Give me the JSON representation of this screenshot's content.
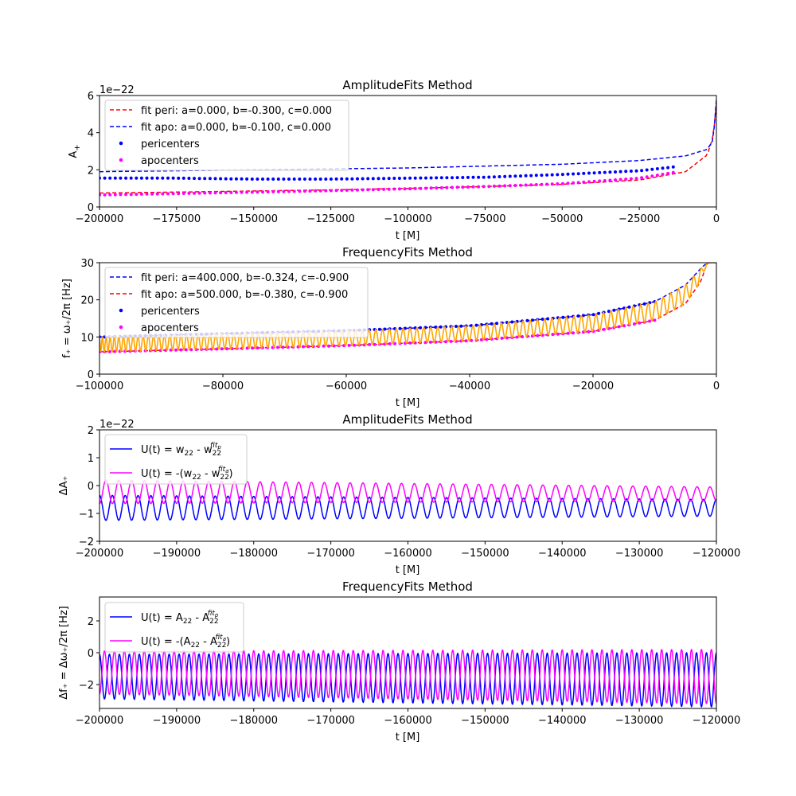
{
  "chart_data": [
    {
      "type": "line",
      "title": "AmplitudeFits Method",
      "xlabel": "t [M]",
      "ylabel": "A",
      "ylabel_sub": "+",
      "offset_text": "1e−22",
      "xlim": [
        -200000,
        0
      ],
      "ylim": [
        0,
        6
      ],
      "xticks": [
        -200000,
        -175000,
        -150000,
        -125000,
        -100000,
        -75000,
        -50000,
        -25000,
        0
      ],
      "xtick_labels": [
        "−200000",
        "−175000",
        "−150000",
        "−125000",
        "−100000",
        "−75000",
        "−50000",
        "−25000",
        "0"
      ],
      "yticks": [
        0,
        2,
        4,
        6
      ],
      "ytick_labels": [
        "0",
        "2",
        "4",
        "6"
      ],
      "legend_position": "upper-left",
      "series": [
        {
          "name": "fit peri: a=0.000, b=-0.300, c=0.000",
          "style": "dashed",
          "color": "#ff0000",
          "x": [
            -200000,
            -175000,
            -150000,
            -125000,
            -100000,
            -75000,
            -50000,
            -25000,
            -10000,
            -3000,
            -1000,
            0
          ],
          "y": [
            0.75,
            0.8,
            0.86,
            0.92,
            1.0,
            1.1,
            1.22,
            1.45,
            1.9,
            2.8,
            3.8,
            5.6
          ]
        },
        {
          "name": "fit apo: a=0.000, b=-0.100, c=0.000",
          "style": "dashed",
          "color": "#0000ff",
          "x": [
            -200000,
            -175000,
            -150000,
            -125000,
            -100000,
            -75000,
            -50000,
            -25000,
            -10000,
            -3000,
            -1000,
            0
          ],
          "y": [
            1.9,
            1.95,
            2.0,
            2.05,
            2.1,
            2.2,
            2.3,
            2.5,
            2.75,
            3.1,
            3.6,
            5.8
          ]
        },
        {
          "name": "pericenters",
          "style": "points",
          "color": "#0000ff",
          "x": [
            -200000,
            -175000,
            -150000,
            -125000,
            -100000,
            -75000,
            -50000,
            -25000,
            -14000
          ],
          "y": [
            1.55,
            1.55,
            1.5,
            1.5,
            1.55,
            1.6,
            1.75,
            1.95,
            2.15
          ]
        },
        {
          "name": "apocenters",
          "style": "points",
          "color": "#ff00ff",
          "x": [
            -200000,
            -175000,
            -150000,
            -125000,
            -100000,
            -75000,
            -50000,
            -25000,
            -14000
          ],
          "y": [
            0.65,
            0.72,
            0.8,
            0.88,
            0.98,
            1.1,
            1.25,
            1.55,
            1.85
          ]
        }
      ]
    },
    {
      "type": "line",
      "title": "FrequencyFits Method",
      "xlabel": "t [M]",
      "ylabel": "f₊ = ω₊/2π [Hz]",
      "xlim": [
        -100000,
        0
      ],
      "ylim": [
        0,
        30
      ],
      "xticks": [
        -100000,
        -80000,
        -60000,
        -40000,
        -20000,
        0
      ],
      "xtick_labels": [
        "−100000",
        "−80000",
        "−60000",
        "−40000",
        "−20000",
        "0"
      ],
      "yticks": [
        0,
        10,
        20,
        30
      ],
      "ytick_labels": [
        "0",
        "10",
        "20",
        "30"
      ],
      "legend_position": "upper-left",
      "series": [
        {
          "name": "fit peri: a=400.000, b=-0.324, c=-0.900",
          "style": "dashed",
          "color": "#0000ff",
          "x": [
            -100000,
            -80000,
            -60000,
            -40000,
            -20000,
            -10000,
            -5000,
            -2500,
            -1500
          ],
          "y": [
            10.0,
            10.9,
            11.7,
            13.0,
            16.0,
            19.5,
            24.0,
            28.5,
            30
          ]
        },
        {
          "name": "fit apo: a=500.000, b=-0.380, c=-0.900",
          "style": "dashed",
          "color": "#ff0000",
          "x": [
            -100000,
            -80000,
            -60000,
            -40000,
            -20000,
            -10000,
            -5000,
            -2500,
            -1500
          ],
          "y": [
            6.0,
            6.8,
            7.7,
            9.0,
            11.5,
            14.5,
            19.0,
            25.0,
            30
          ]
        },
        {
          "name": "pericenters",
          "style": "points",
          "color": "#0000ff",
          "x": [
            -100000,
            -80000,
            -60000,
            -40000,
            -20000,
            -10000
          ],
          "y": [
            10.0,
            10.9,
            11.7,
            13.0,
            16.0,
            19.5
          ]
        },
        {
          "name": "apocenters",
          "style": "points",
          "color": "#ff00ff",
          "x": [
            -100000,
            -80000,
            -60000,
            -40000,
            -20000,
            -10000
          ],
          "y": [
            6.0,
            6.8,
            7.7,
            9.0,
            11.5,
            14.5
          ]
        },
        {
          "name": "",
          "style": "oscillation",
          "color": "#ffa500",
          "cycles": 95
        }
      ]
    },
    {
      "type": "line",
      "title": "AmplitudeFits Method",
      "xlabel": "t [M]",
      "ylabel": "ΔA₊",
      "offset_text": "1e−22",
      "xlim": [
        -200000,
        -120000
      ],
      "ylim": [
        -2,
        2
      ],
      "xticks": [
        -200000,
        -190000,
        -180000,
        -170000,
        -160000,
        -150000,
        -140000,
        -130000,
        -120000
      ],
      "xtick_labels": [
        "−200000",
        "−190000",
        "−180000",
        "−170000",
        "−160000",
        "−150000",
        "−140000",
        "−130000",
        "−120000"
      ],
      "yticks": [
        -2,
        -1,
        0,
        1,
        2
      ],
      "ytick_labels": [
        "−2",
        "−1",
        "0",
        "1",
        "2"
      ],
      "legend_position": "upper-left",
      "series": [
        {
          "name": "U(t) = w₂₂ - w₂₂^fitₚ",
          "color": "#0000ff",
          "style": "oscillation",
          "cycles": 48,
          "low": [
            -1.25,
            -1.1
          ],
          "high": [
            -0.35,
            -0.5
          ]
        },
        {
          "name": "U(t) = -(w₂₂ - w₂₂^fitₐ)",
          "color": "#ff00ff",
          "style": "oscillation",
          "cycles": 48,
          "low": [
            -0.65,
            -0.55
          ],
          "high": [
            0.2,
            -0.05
          ]
        }
      ]
    },
    {
      "type": "line",
      "title": "FrequencyFits Method",
      "xlabel": "t [M]",
      "ylabel": "Δf₊ = Δω₊/2π [Hz]",
      "xlim": [
        -200000,
        -120000
      ],
      "ylim": [
        -3.5,
        3.5
      ],
      "xticks": [
        -200000,
        -190000,
        -180000,
        -170000,
        -160000,
        -150000,
        -140000,
        -130000,
        -120000
      ],
      "xtick_labels": [
        "−200000",
        "−190000",
        "−180000",
        "−170000",
        "−160000",
        "−150000",
        "−140000",
        "−130000",
        "−120000"
      ],
      "yticks": [
        -2,
        0,
        2
      ],
      "ytick_labels": [
        "−2",
        "0",
        "2"
      ],
      "legend_position": "upper-left",
      "series": [
        {
          "name": "U(t) = A₂₂ - A₂₂^fitₚ",
          "color": "#0000ff",
          "style": "oscillation",
          "cycles": 62,
          "low": [
            -2.9,
            -3.4
          ],
          "high": [
            -0.1,
            0.0
          ]
        },
        {
          "name": "U(t) = -(A₂₂ - A₂₂^fitₐ)",
          "color": "#ff00ff",
          "style": "oscillation",
          "cycles": 62,
          "low": [
            -2.6,
            -3.2
          ],
          "high": [
            0.1,
            0.2
          ]
        }
      ]
    }
  ],
  "legends": {
    "p1": [
      "fit peri: a=0.000, b=-0.300, c=0.000",
      "fit apo: a=0.000, b=-0.100, c=0.000",
      "pericenters",
      "apocenters"
    ],
    "p2": [
      "fit peri: a=400.000, b=-0.324, c=-0.900",
      "fit apo: a=500.000, b=-0.380, c=-0.900",
      "pericenters",
      "apocenters"
    ],
    "p3a": "U(t) = w",
    "p3b": "U(t) = -(w",
    "p4a": "U(t) = A",
    "p4b": "U(t) = -(A"
  }
}
